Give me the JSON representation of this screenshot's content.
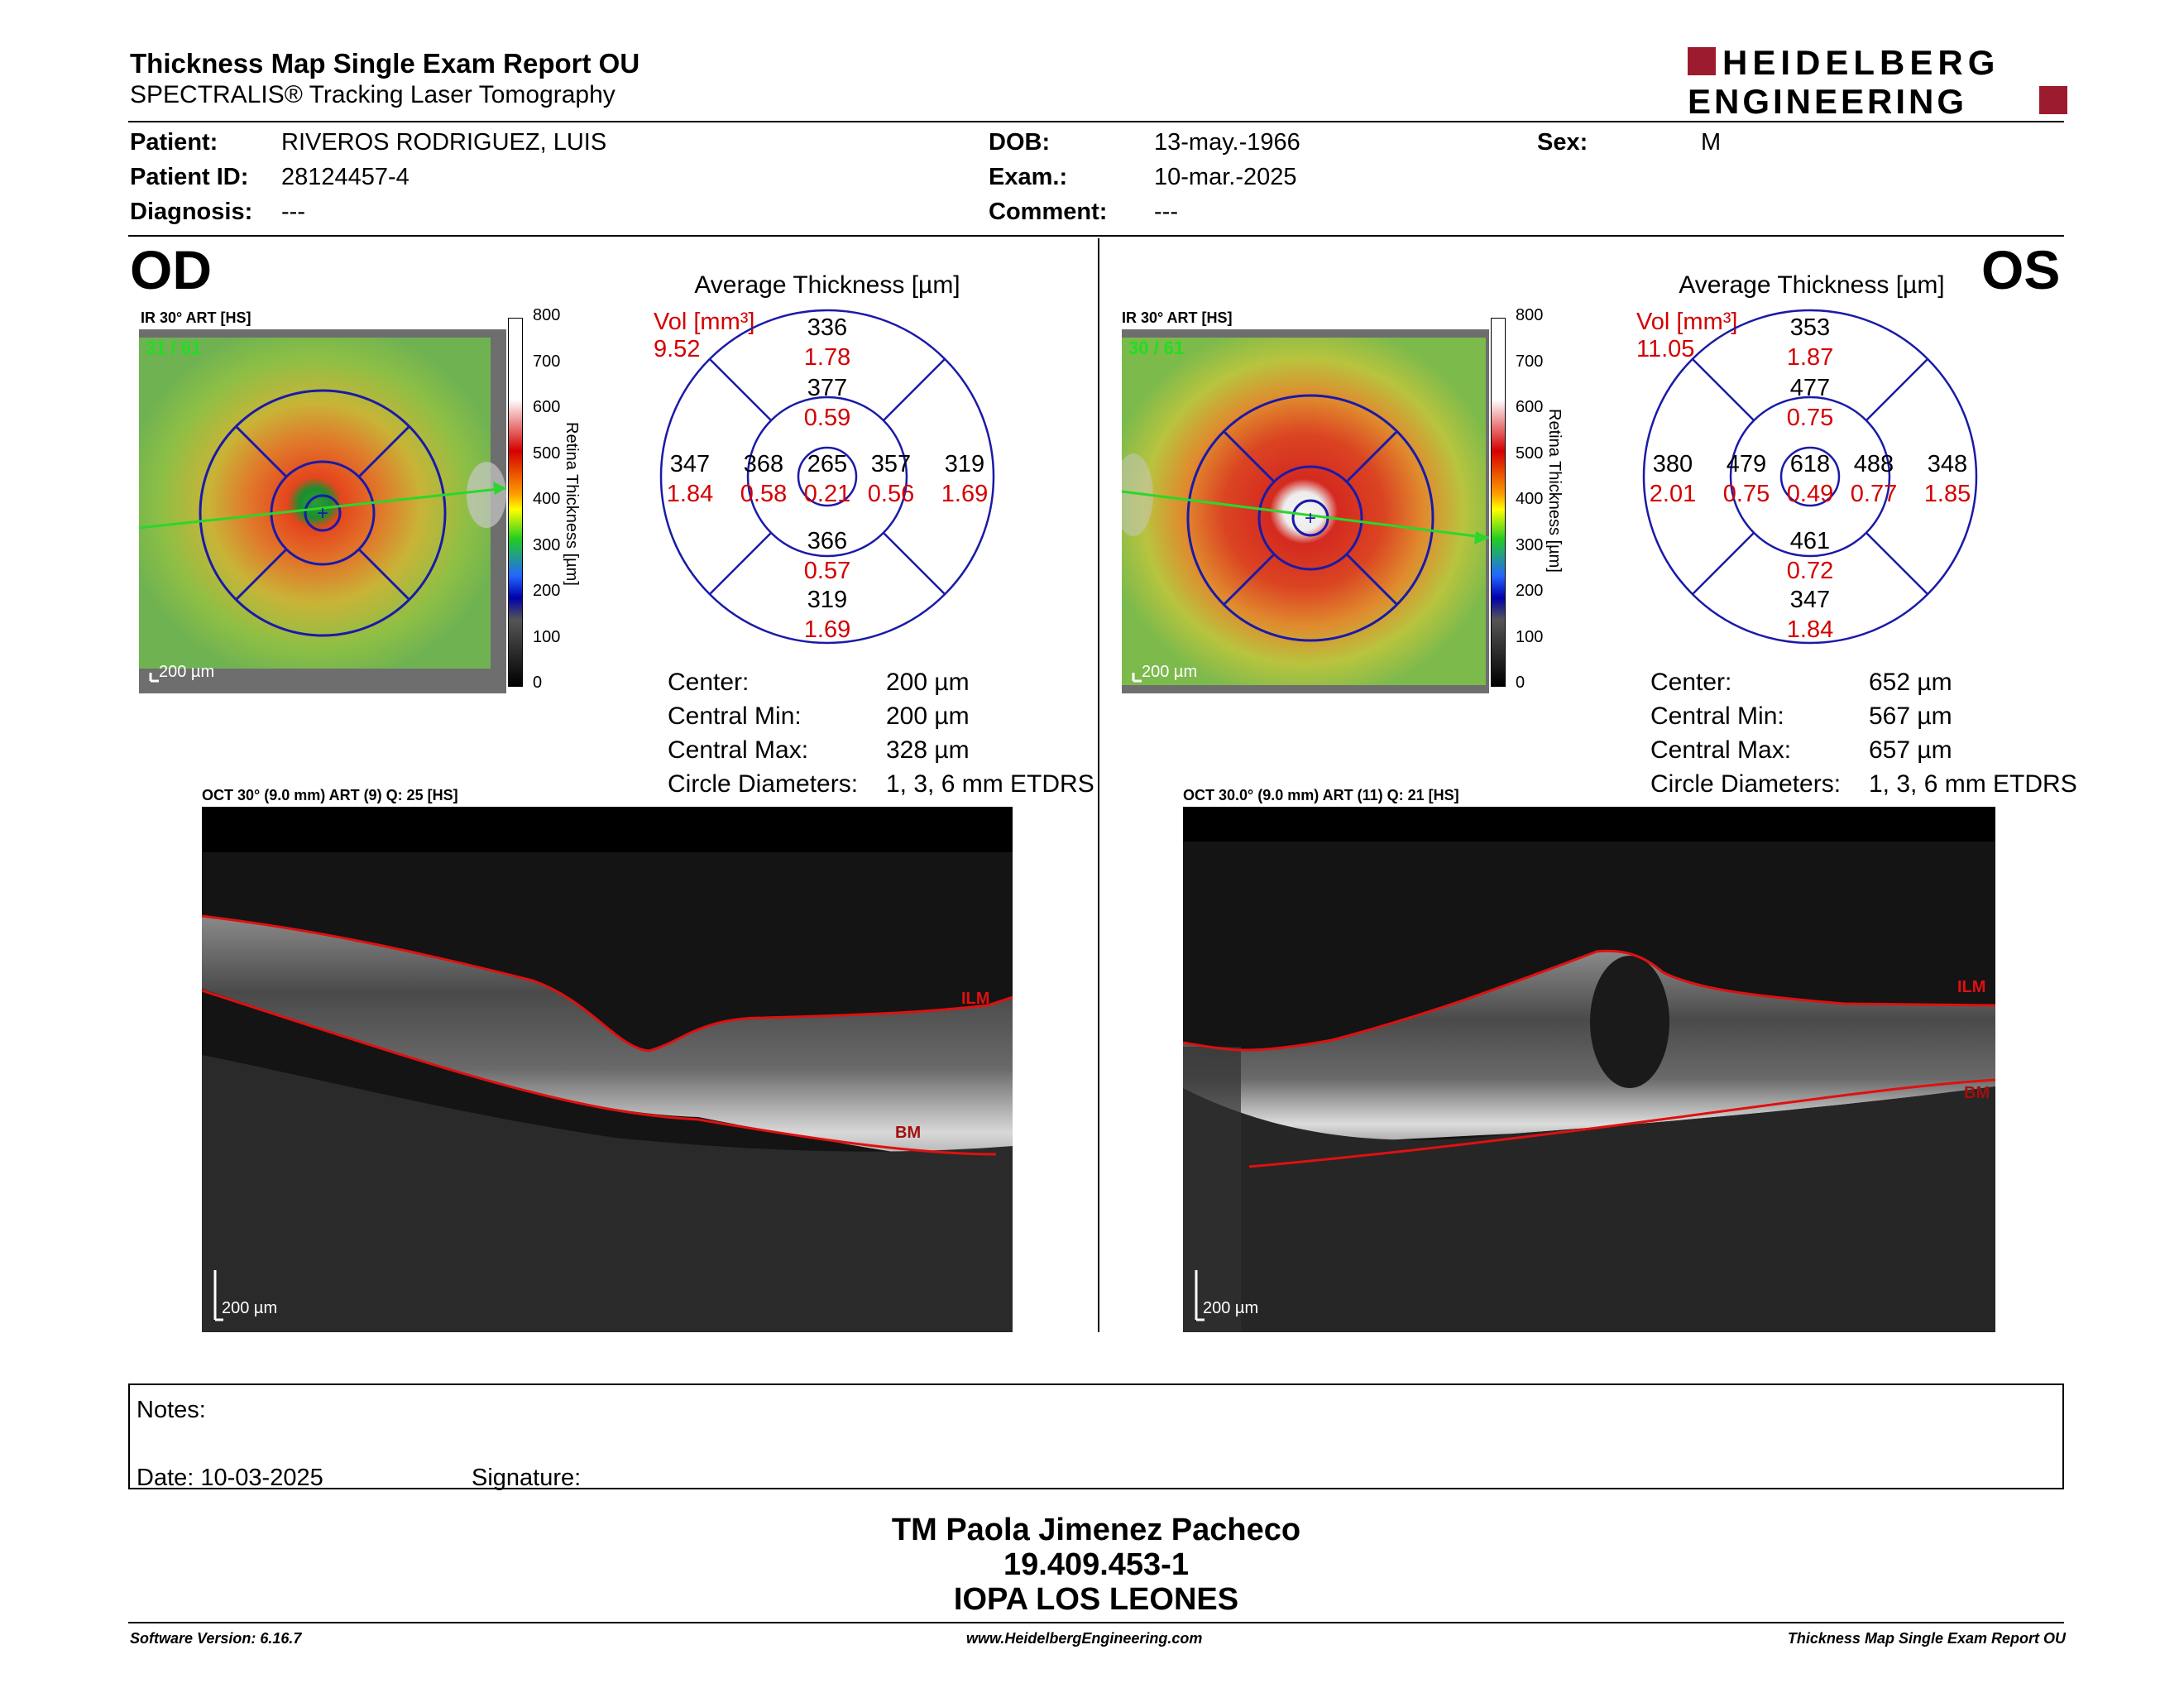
{
  "report": {
    "title": "Thickness Map Single Exam Report OU",
    "subtitle": "SPECTRALIS® Tracking Laser Tomography",
    "logo_line1": "HEIDELBERG",
    "logo_line2": "ENGINEERING"
  },
  "patient": {
    "patient_label": "Patient:",
    "patient_value": "RIVEROS RODRIGUEZ, LUIS",
    "id_label": "Patient ID:",
    "id_value": "28124457-4",
    "diag_label": "Diagnosis:",
    "diag_value": "---",
    "dob_label": "DOB:",
    "dob_value": "13-may.-1966",
    "exam_label": "Exam.:",
    "exam_value": "10-mar.-2025",
    "comment_label": "Comment:",
    "comment_value": "---",
    "sex_label": "Sex:",
    "sex_value": "M"
  },
  "od": {
    "eye": "OD",
    "ir_label": "IR 30° ART [HS]",
    "frame": "31 / 61",
    "scale": "200 µm",
    "avg_title": "Average Thickness [µm]",
    "vol_label": "Vol [mm³]",
    "vol_value": "9.52",
    "grid": {
      "center": [
        "265",
        "0.21"
      ],
      "inner_sup": [
        "377",
        "0.59"
      ],
      "inner_inf": [
        "366",
        "0.57"
      ],
      "inner_nas": [
        "368",
        "0.58"
      ],
      "inner_tmp": [
        "357",
        "0.56"
      ],
      "outer_sup": [
        "336",
        "1.78"
      ],
      "outer_inf": [
        "319",
        "1.69"
      ],
      "outer_nas": [
        "347",
        "1.84"
      ],
      "outer_tmp": [
        "319",
        "1.69"
      ]
    },
    "stats": [
      {
        "label": "Center:",
        "value": "200 µm"
      },
      {
        "label": "Central Min:",
        "value": "200 µm"
      },
      {
        "label": "Central Max:",
        "value": "328 µm"
      },
      {
        "label": "Circle Diameters:",
        "value": "1, 3, 6 mm ETDRS"
      }
    ],
    "oct_label": "OCT 30° (9.0 mm) ART (9) Q: 25 [HS]",
    "ilm": "ILM",
    "bm": "BM",
    "oct_scale": "200 µm"
  },
  "os": {
    "eye": "OS",
    "ir_label": "IR 30° ART [HS]",
    "frame": "30 / 61",
    "scale": "200 µm",
    "avg_title": "Average Thickness [µm]",
    "vol_label": "Vol [mm³]",
    "vol_value": "11.05",
    "grid": {
      "center": [
        "618",
        "0.49"
      ],
      "inner_sup": [
        "477",
        "0.75"
      ],
      "inner_inf": [
        "461",
        "0.72"
      ],
      "inner_nas": [
        "479",
        "0.75"
      ],
      "inner_tmp": [
        "488",
        "0.77"
      ],
      "outer_sup": [
        "353",
        "1.87"
      ],
      "outer_inf": [
        "347",
        "1.84"
      ],
      "outer_nas": [
        "380",
        "2.01"
      ],
      "outer_tmp": [
        "348",
        "1.85"
      ]
    },
    "stats": [
      {
        "label": "Center:",
        "value": "652 µm"
      },
      {
        "label": "Central Min:",
        "value": "567 µm"
      },
      {
        "label": "Central Max:",
        "value": "657 µm"
      },
      {
        "label": "Circle Diameters:",
        "value": "1, 3, 6 mm ETDRS"
      }
    ],
    "oct_label": "OCT 30.0° (9.0 mm) ART (11) Q: 21 [HS]",
    "ilm": "ILM",
    "bm": "BM",
    "oct_scale": "200 µm"
  },
  "colorbar": {
    "ticks": [
      "800",
      "700",
      "600",
      "500",
      "400",
      "300",
      "200",
      "100",
      "0"
    ],
    "title": "Retina Thickness [µm]"
  },
  "notes": {
    "notes_label": "Notes:",
    "date_label": "Date: 10-03-2025",
    "signature_label": "Signature:"
  },
  "signer": {
    "name": "TM Paola Jimenez Pacheco",
    "id": "19.409.453-1",
    "org": "IOPA LOS LEONES"
  },
  "footer": {
    "software": "Software Version: 6.16.7",
    "url": "www.HeidelbergEngineering.com",
    "report": "Thickness Map Single Exam Report OU"
  }
}
